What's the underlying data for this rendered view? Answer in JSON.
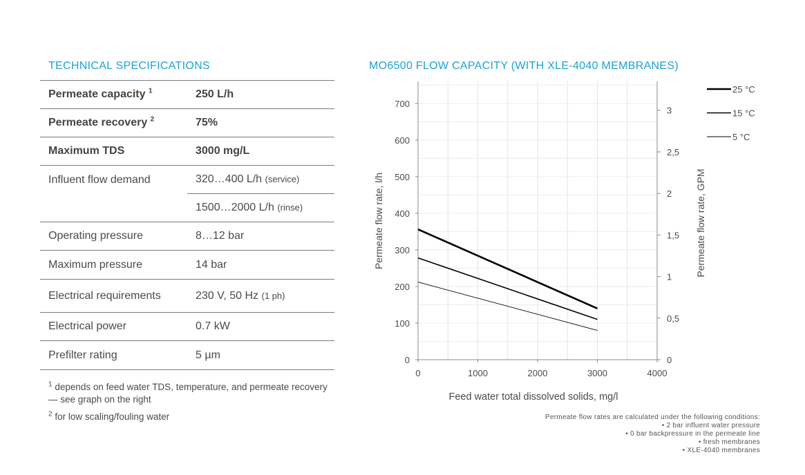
{
  "specs": {
    "title": "TECHNICAL SPECIFICATIONS",
    "rows": {
      "r0": {
        "label": "Permeate capacity",
        "sup": "1",
        "value": "250 L/h"
      },
      "r1": {
        "label": "Permeate recovery",
        "sup": "2",
        "value": "75%"
      },
      "r2": {
        "label": "Maximum TDS",
        "value": "3000 mg/L"
      },
      "r3": {
        "label": "Influent flow demand",
        "value_a": "320…400 L/h",
        "note_a": "(service)",
        "value_b": "1500…2000 L/h",
        "note_b": "(rinse)"
      },
      "r4": {
        "label": "Operating pressure",
        "value": "8…12 bar"
      },
      "r5": {
        "label": "Maximum pressure",
        "value": "14 bar"
      },
      "r6": {
        "label": "Electrical requirements",
        "value": "230 V, 50 Hz",
        "note": "(1 ph)"
      },
      "r7": {
        "label": "Electrical power",
        "value": "0.7 kW"
      },
      "r8": {
        "label": "Prefilter rating",
        "value": "5 µm"
      }
    },
    "footnotes": {
      "f1_mark": "1",
      "f1_text": "depends on feed water TDS, temperature, and permeate recovery — see graph on the right",
      "f2_mark": "2",
      "f2_text": "for low scaling/fouling water"
    }
  },
  "chart_data": {
    "type": "line",
    "title": "MO6500 FLOW CAPACITY (WITH XLE-4040 MEMBRANES)",
    "xlabel": "Feed water total dissolved solids, mg/l",
    "ylabel": "Permeate flow rate, l/h",
    "y2label": "Permeate flow rate, GPM",
    "xlim": [
      0,
      4000
    ],
    "ylim": [
      0,
      760
    ],
    "xticks": [
      0,
      1000,
      2000,
      3000,
      4000
    ],
    "yticks": [
      0,
      100,
      200,
      300,
      400,
      500,
      600,
      700
    ],
    "y2ticks": [
      "0",
      "0,5",
      "1",
      "1,5",
      "2",
      "2,5",
      "3"
    ],
    "y2tick_values": [
      0,
      0.5,
      1,
      1.5,
      2,
      2.5,
      3
    ],
    "gpm_to_lph": 227.1,
    "grid": true,
    "legend_position": "top-right",
    "series": [
      {
        "name": "25 °C",
        "x": [
          0,
          3000
        ],
        "y": [
          356,
          140
        ],
        "stroke_color": "#000000",
        "weight": "heavy"
      },
      {
        "name": "15 °C",
        "x": [
          0,
          3000
        ],
        "y": [
          278,
          110
        ],
        "stroke_color": "#000000",
        "weight": "medium"
      },
      {
        "name": "5 °C",
        "x": [
          0,
          3000
        ],
        "y": [
          212,
          80
        ],
        "stroke_color": "#000000",
        "weight": "light"
      }
    ]
  },
  "conditions": {
    "l0": "Permeate flow rates are calculated under the following conditions:",
    "l1": "• 2 bar influent water pressure",
    "l2": "• 0 bar backpressure in the permeate line",
    "l3": "• fresh membranes",
    "l4": "• XLE-4040 membranes"
  }
}
